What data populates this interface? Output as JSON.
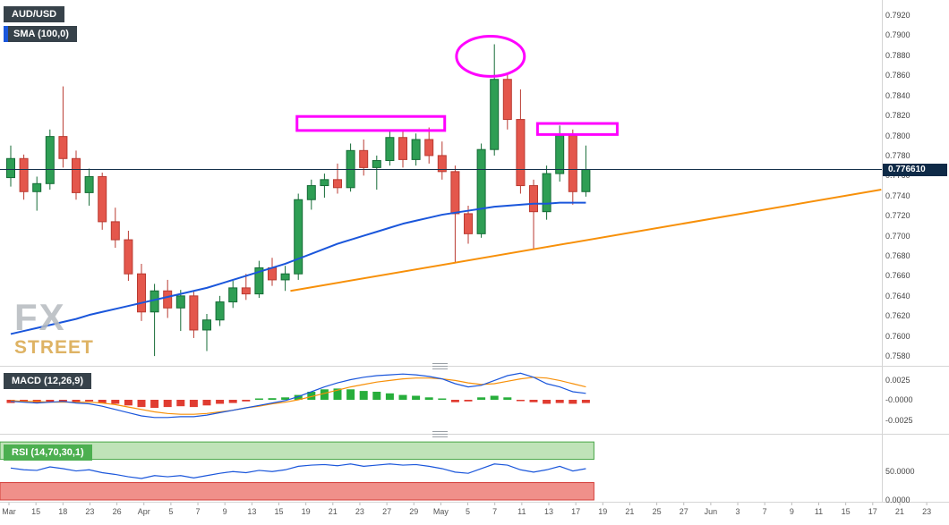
{
  "header": {
    "symbol_label": "AUD/USD",
    "sma_label": "SMA (100,0)"
  },
  "watermark": {
    "line1": "FX",
    "line2": "STREET"
  },
  "price_tag": {
    "value": "0.776610"
  },
  "panels": {
    "macd": {
      "label": "MACD (12,26,9)"
    },
    "rsi": {
      "label": "RSI (14,70,30,1)"
    }
  },
  "colors": {
    "bull": "#2e9e54",
    "bull_border": "#156b36",
    "bear": "#e4574c",
    "bear_border": "#b93a31",
    "sma": "#1a56db",
    "trendline": "#f79009",
    "price_line": "#16324c",
    "annotation": "#ff00ff",
    "macd_line": "#1a56db",
    "signal_line": "#f79009",
    "hist_pos": "#27ae3b",
    "hist_neg": "#e03c31",
    "rsi_line": "#1a56db",
    "rsi_overbought_fill": "#bfe3b8",
    "rsi_overbought_border": "#46a546",
    "rsi_oversold_fill": "#f0908a",
    "rsi_oversold_border": "#d43f3a",
    "divider": "#d5d5d5",
    "axis_text": "#444444",
    "label_bg": "#37424a",
    "rsi_label_bg": "#4caf50",
    "price_tag_bg": "#0e2a47",
    "watermark_gray": "#b6babf",
    "watermark_orange": "#d9a64a"
  },
  "chart_data": {
    "type": "candlestick",
    "symbol": "AUD/USD",
    "current_price": 0.77661,
    "price_range": {
      "max": 0.792,
      "min": 0.758
    },
    "price_axis_ticks": [
      "0.7920",
      "0.7900",
      "0.7880",
      "0.7860",
      "0.7840",
      "0.7820",
      "0.7800",
      "0.7780",
      "0.7760",
      "0.7740",
      "0.7720",
      "0.7700",
      "0.7680",
      "0.7660",
      "0.7640",
      "0.7620",
      "0.7600",
      "0.7580"
    ],
    "date_axis_ticks": [
      "Mar",
      "15",
      "18",
      "23",
      "26",
      "Apr",
      "5",
      "7",
      "9",
      "13",
      "15",
      "19",
      "21",
      "23",
      "27",
      "29",
      "May",
      "5",
      "7",
      "11",
      "13",
      "17",
      "19",
      "21",
      "25",
      "27",
      "Jun",
      "3",
      "7",
      "9",
      "11",
      "15",
      "17",
      "21",
      "23"
    ],
    "candles": [
      [
        0.7758,
        0.779,
        0.7749,
        0.7777
      ],
      [
        0.7777,
        0.7781,
        0.7736,
        0.7744
      ],
      [
        0.7744,
        0.7759,
        0.7725,
        0.7752
      ],
      [
        0.7752,
        0.7806,
        0.7746,
        0.7799
      ],
      [
        0.7799,
        0.7849,
        0.7768,
        0.7777
      ],
      [
        0.7777,
        0.7785,
        0.7736,
        0.7743
      ],
      [
        0.7743,
        0.7767,
        0.773,
        0.7759
      ],
      [
        0.7759,
        0.7763,
        0.7706,
        0.7714
      ],
      [
        0.7714,
        0.7728,
        0.7688,
        0.7696
      ],
      [
        0.7696,
        0.7705,
        0.7655,
        0.7662
      ],
      [
        0.7662,
        0.7672,
        0.7615,
        0.7624
      ],
      [
        0.7624,
        0.7652,
        0.758,
        0.7645
      ],
      [
        0.7645,
        0.7656,
        0.7618,
        0.7628
      ],
      [
        0.7628,
        0.7646,
        0.7605,
        0.764
      ],
      [
        0.764,
        0.7645,
        0.7598,
        0.7606
      ],
      [
        0.7606,
        0.7622,
        0.7585,
        0.7616
      ],
      [
        0.7616,
        0.764,
        0.761,
        0.7634
      ],
      [
        0.7634,
        0.7655,
        0.7628,
        0.7648
      ],
      [
        0.7648,
        0.7662,
        0.7636,
        0.7642
      ],
      [
        0.7642,
        0.7675,
        0.7638,
        0.7668
      ],
      [
        0.7668,
        0.7678,
        0.765,
        0.7656
      ],
      [
        0.7656,
        0.767,
        0.7645,
        0.7662
      ],
      [
        0.7662,
        0.7742,
        0.7656,
        0.7736
      ],
      [
        0.7736,
        0.7756,
        0.7726,
        0.775
      ],
      [
        0.775,
        0.7762,
        0.7738,
        0.7756
      ],
      [
        0.7756,
        0.7772,
        0.7742,
        0.7748
      ],
      [
        0.7748,
        0.7792,
        0.7744,
        0.7785
      ],
      [
        0.7785,
        0.7796,
        0.776,
        0.7768
      ],
      [
        0.7768,
        0.778,
        0.7746,
        0.7775
      ],
      [
        0.7775,
        0.7806,
        0.777,
        0.7798
      ],
      [
        0.7798,
        0.7804,
        0.7768,
        0.7776
      ],
      [
        0.7776,
        0.7802,
        0.777,
        0.7796
      ],
      [
        0.7796,
        0.7808,
        0.7772,
        0.778
      ],
      [
        0.778,
        0.7794,
        0.7756,
        0.7764
      ],
      [
        0.7764,
        0.777,
        0.7673,
        0.7722
      ],
      [
        0.7722,
        0.773,
        0.7692,
        0.7702
      ],
      [
        0.7702,
        0.7792,
        0.7698,
        0.7786
      ],
      [
        0.7786,
        0.7891,
        0.778,
        0.7856
      ],
      [
        0.7856,
        0.7862,
        0.7806,
        0.7816
      ],
      [
        0.7816,
        0.7846,
        0.7742,
        0.775
      ],
      [
        0.775,
        0.7756,
        0.7686,
        0.7724
      ],
      [
        0.7724,
        0.777,
        0.7716,
        0.7762
      ],
      [
        0.7762,
        0.781,
        0.7754,
        0.78
      ],
      [
        0.78,
        0.7806,
        0.7731,
        0.7744
      ],
      [
        0.7744,
        0.779,
        0.7739,
        0.7766
      ]
    ],
    "sma100": [
      0.7602,
      0.7605,
      0.7608,
      0.7611,
      0.7614,
      0.7617,
      0.7621,
      0.7624,
      0.7627,
      0.763,
      0.7633,
      0.7636,
      0.7639,
      0.7642,
      0.7645,
      0.7648,
      0.7652,
      0.7656,
      0.766,
      0.7664,
      0.7668,
      0.7672,
      0.7677,
      0.7682,
      0.7687,
      0.7692,
      0.7696,
      0.77,
      0.7704,
      0.7708,
      0.7712,
      0.7715,
      0.7718,
      0.7721,
      0.7723,
      0.7725,
      0.7727,
      0.7729,
      0.773,
      0.7731,
      0.7732,
      0.7732,
      0.7733,
      0.7733,
      0.7733
    ],
    "trendline": {
      "from": {
        "candle": 21.4,
        "price": 0.7645
      },
      "to": {
        "candle": 66.6,
        "price": 0.7746
      }
    },
    "annotations": [
      {
        "type": "ellipse",
        "candle_center": 36.7,
        "price_center": 0.7879,
        "candle_radius": 2.6,
        "price_radius": 0.002
      },
      {
        "type": "rect",
        "from_candle": 21.9,
        "to_candle": 33.2,
        "price_top": 0.7819,
        "price_bottom": 0.7805
      },
      {
        "type": "rect",
        "from_candle": 40.3,
        "to_candle": 46.4,
        "price_top": 0.7812,
        "price_bottom": 0.7801
      }
    ],
    "macd": {
      "axis_ticks": [
        "0.0025",
        "-0.0000",
        "-0.0025"
      ],
      "range": [
        -0.0025,
        0.0025
      ],
      "histogram": [
        -0.0004,
        -0.0003,
        -0.0004,
        -0.0003,
        -0.0002,
        -0.0003,
        -0.0002,
        -0.0004,
        -0.0005,
        -0.0007,
        -0.0009,
        -0.001,
        -0.0009,
        -0.0008,
        -0.0009,
        -0.0007,
        -0.0005,
        -0.0004,
        -0.0002,
        0.0001,
        0.0002,
        0.0003,
        0.0006,
        0.001,
        0.0013,
        0.0014,
        0.0013,
        0.0011,
        0.001,
        0.0008,
        0.0006,
        0.0005,
        0.0003,
        0.0001,
        -0.0003,
        -0.0002,
        0.0003,
        0.0005,
        0.0003,
        -0.0001,
        -0.0003,
        -0.0005,
        -0.0004,
        -0.0005,
        -0.0004
      ],
      "macd_line": [
        -0.0002,
        -0.0003,
        -0.0004,
        -0.0003,
        -0.0002,
        -0.0004,
        -0.0005,
        -0.0008,
        -0.0012,
        -0.0016,
        -0.002,
        -0.0022,
        -0.0022,
        -0.0021,
        -0.0021,
        -0.0019,
        -0.0016,
        -0.0013,
        -0.001,
        -0.0007,
        -0.0004,
        -0.0001,
        0.0004,
        0.001,
        0.0016,
        0.0021,
        0.0025,
        0.0028,
        0.003,
        0.0031,
        0.0032,
        0.0031,
        0.0029,
        0.0026,
        0.002,
        0.0016,
        0.0018,
        0.0024,
        0.003,
        0.0033,
        0.0028,
        0.002,
        0.0016,
        0.001,
        0.0008
      ],
      "signal_line": [
        -0.0001,
        -0.0002,
        -0.0002,
        -0.0003,
        -0.0003,
        -0.0003,
        -0.0003,
        -0.0004,
        -0.0006,
        -0.0009,
        -0.0012,
        -0.0015,
        -0.0017,
        -0.0018,
        -0.0018,
        -0.0017,
        -0.0015,
        -0.0013,
        -0.001,
        -0.0008,
        -0.0005,
        -0.0003,
        0.0,
        0.0004,
        0.0008,
        0.0012,
        0.0016,
        0.0019,
        0.0022,
        0.0024,
        0.0026,
        0.0027,
        0.0027,
        0.0026,
        0.0024,
        0.0021,
        0.0019,
        0.002,
        0.0023,
        0.0026,
        0.0028,
        0.0027,
        0.0024,
        0.002,
        0.0016
      ]
    },
    "rsi": {
      "axis_ticks": [
        "50.0000",
        "0.0000"
      ],
      "range": [
        0,
        100
      ],
      "overbought": 70,
      "oversold": 30,
      "values": [
        55,
        52,
        51,
        57,
        54,
        50,
        52,
        47,
        44,
        40,
        37,
        42,
        40,
        42,
        38,
        42,
        46,
        49,
        47,
        51,
        49,
        52,
        58,
        60,
        61,
        59,
        62,
        58,
        60,
        62,
        60,
        61,
        58,
        54,
        48,
        46,
        54,
        62,
        60,
        52,
        48,
        52,
        58,
        50,
        54
      ]
    }
  }
}
